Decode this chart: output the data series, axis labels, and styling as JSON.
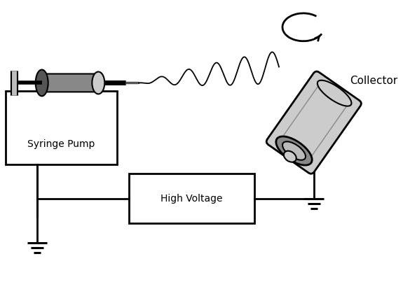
{
  "background_color": "#ffffff",
  "line_color": "#000000",
  "gray_dark": "#555555",
  "gray_mid": "#888888",
  "gray_light": "#bbbbbb",
  "gray_lighter": "#cccccc",
  "syringe_pump_label": "Syringe Pump",
  "high_voltage_label": "High Voltage",
  "collector_label": "Collector",
  "figsize": [
    5.85,
    4.13
  ],
  "dpi": 100
}
